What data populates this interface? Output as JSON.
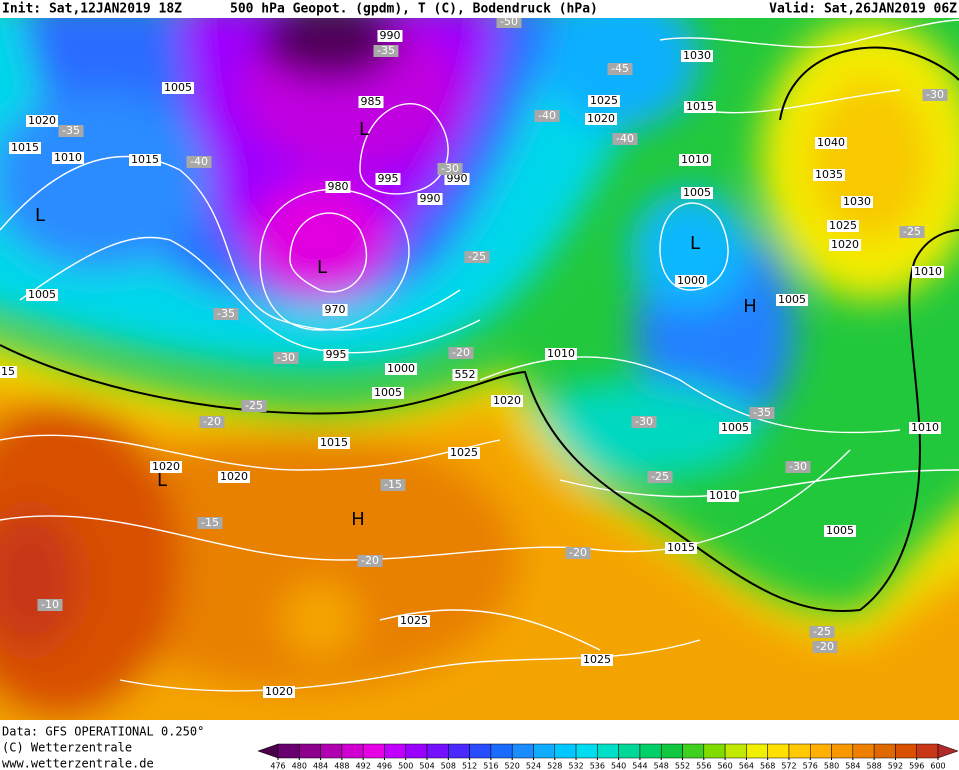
{
  "header": {
    "init": "Init: Sat,12JAN2019 18Z",
    "title": "500 hPa Geopot. (gpdm), T (C), Bodendruck (hPa)",
    "valid": "Valid: Sat,26JAN2019 06Z"
  },
  "footer": {
    "data": "Data: GFS OPERATIONAL 0.250°",
    "copyright": "(C) Wetterzentrale",
    "url": "www.wetterzentrale.de"
  },
  "isobar_labels": [
    "1005",
    "1020",
    "1015",
    "1010",
    "1015",
    "990",
    "985",
    "995",
    "990",
    "990",
    "980",
    "1025",
    "1020",
    "1015",
    "1030",
    "1010",
    "1005",
    "1040",
    "1035",
    "1030",
    "1025",
    "1020",
    "1010",
    "1000",
    "1005",
    "1005",
    "970",
    "995",
    "1000",
    "1005",
    "1010",
    "1020",
    "1015",
    "1025",
    "1020",
    "1020",
    "1005",
    "1010",
    "1010",
    "1005",
    "1015",
    "1025",
    "1025",
    "1020",
    "15",
    "552"
  ],
  "temperature_labels": [
    "-35",
    "-40",
    "-35",
    "-35",
    "-30",
    "-25",
    "-20",
    "-15",
    "-15",
    "-20",
    "-10",
    "-40",
    "-45",
    "-40",
    "-30",
    "-25",
    "-20",
    "-35",
    "-30",
    "-30",
    "-25",
    "-20",
    "-25",
    "-20",
    "-30",
    "-25",
    "-50"
  ],
  "pressure_centers": [
    "L",
    "L",
    "L",
    "L",
    "H",
    "L",
    "H"
  ],
  "colorbar": {
    "ticks": [
      476,
      480,
      484,
      488,
      492,
      496,
      500,
      504,
      508,
      512,
      516,
      520,
      524,
      528,
      532,
      536,
      540,
      544,
      548,
      552,
      556,
      560,
      564,
      568,
      572,
      576,
      580,
      584,
      588,
      592,
      596,
      600
    ],
    "colors": [
      "#4a0048",
      "#6a0070",
      "#8c008c",
      "#b000b0",
      "#d000d0",
      "#e600e6",
      "#c000ff",
      "#9a00ff",
      "#7410ff",
      "#4a2aff",
      "#2a4cff",
      "#1a6cff",
      "#1a8cff",
      "#10acff",
      "#00c8ff",
      "#00dcf0",
      "#00e0c8",
      "#00d898",
      "#00d068",
      "#10c840",
      "#40d020",
      "#80dc00",
      "#c0e800",
      "#f0f000",
      "#ffe000",
      "#ffc800",
      "#ffb000",
      "#f89800",
      "#f08000",
      "#e06800",
      "#d85000",
      "#c83818",
      "#b02828"
    ]
  }
}
